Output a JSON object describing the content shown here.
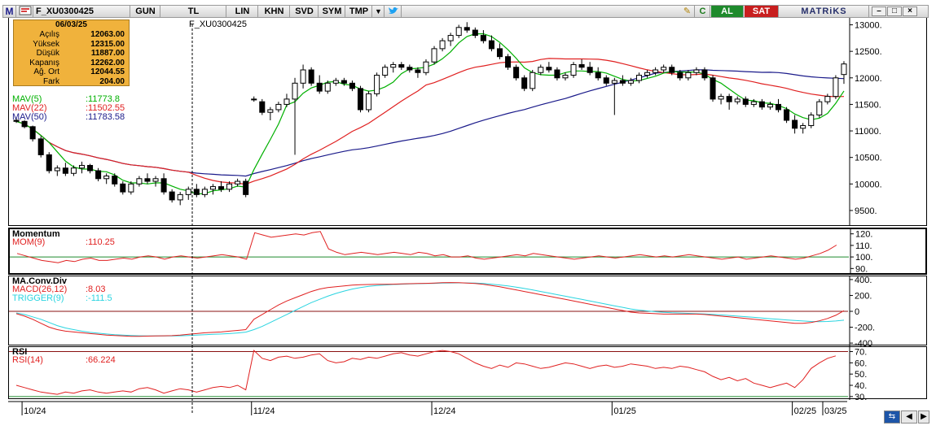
{
  "toolbar": {
    "logo": "M",
    "symbol": "F_XU0300425",
    "period": "GUN",
    "currency": "TL",
    "buttons": [
      "LIN",
      "KHN",
      "SVD",
      "SYM",
      "TMP"
    ],
    "buy_label": "AL",
    "sell_label": "SAT",
    "brand": "MATRiKS",
    "colors": {
      "buy": "#1e8a2c",
      "sell": "#c81e1e"
    }
  },
  "price_panel": {
    "ticker": "F_XU0300425",
    "info": {
      "date": "06/03/25",
      "rows": [
        {
          "label": "Açılış",
          "value": "12063.00"
        },
        {
          "label": "Yüksek",
          "value": "12315.00"
        },
        {
          "label": "Düşük",
          "value": "11887.00"
        },
        {
          "label": "Kapanış",
          "value": "12262.00"
        },
        {
          "label": "Ağ. Ort",
          "value": "12044.55"
        },
        {
          "label": "Fark",
          "value": "204.00"
        }
      ]
    },
    "legend": [
      {
        "name": "MAV(5)",
        "value": ":11773.8",
        "color": "#00b000"
      },
      {
        "name": "MAV(22)",
        "value": ":11502.55",
        "color": "#e02020"
      },
      {
        "name": "MAV(50)",
        "value": ":11783.58",
        "color": "#1a1a8a"
      }
    ],
    "y_ticks": [
      "13000.",
      "12500.",
      "12000.",
      "11500.",
      "11000.",
      "10500.",
      "10000.",
      "9500."
    ]
  },
  "momentum_panel": {
    "title": "Momentum",
    "legend": {
      "name": "MOM(9)",
      "value": ":110.25",
      "color": "#e02020"
    },
    "y_ticks": [
      "120.",
      "110.",
      "100.",
      "90."
    ]
  },
  "macd_panel": {
    "title": "MA.Conv.Div",
    "legend": [
      {
        "name": "MACD(26,12)",
        "value": ":8.03",
        "color": "#e02020"
      },
      {
        "name": "TRIGGER(9)",
        "value": ":-111.5",
        "color": "#2ad4e0"
      }
    ],
    "y_ticks": [
      "400.",
      "200.",
      "0",
      "-200.",
      "-400"
    ]
  },
  "rsi_panel": {
    "title": "RSI",
    "legend": {
      "name": "RSI(14)",
      "value": ":66.224",
      "color": "#e02020"
    },
    "y_ticks": [
      "70.",
      "60.",
      "50.",
      "40.",
      "30."
    ]
  },
  "x_axis": {
    "labels": [
      "10/24",
      "11/24",
      "12/24",
      "01/25",
      "02/25",
      "03/25"
    ]
  },
  "chart_data": {
    "type": "candlestick",
    "title": "F_XU0300425",
    "ylim": [
      9300,
      13100
    ],
    "candles": [
      [
        11200,
        11250,
        11150,
        11180
      ],
      [
        11180,
        11200,
        11050,
        11080
      ],
      [
        11080,
        11100,
        10800,
        10850
      ],
      [
        10850,
        10900,
        10500,
        10550
      ],
      [
        10550,
        10600,
        10200,
        10250
      ],
      [
        10250,
        10350,
        10150,
        10300
      ],
      [
        10300,
        10400,
        10150,
        10200
      ],
      [
        10200,
        10350,
        10150,
        10300
      ],
      [
        10300,
        10420,
        10200,
        10350
      ],
      [
        10350,
        10380,
        10200,
        10250
      ],
      [
        10250,
        10300,
        10050,
        10100
      ],
      [
        10100,
        10200,
        10000,
        10150
      ],
      [
        10150,
        10200,
        9950,
        10000
      ],
      [
        10000,
        10050,
        9800,
        9850
      ],
      [
        9850,
        10050,
        9800,
        10000
      ],
      [
        10000,
        10150,
        9950,
        10100
      ],
      [
        10100,
        10200,
        10000,
        10050
      ],
      [
        10050,
        10150,
        9950,
        10100
      ],
      [
        10100,
        10200,
        9800,
        9850
      ],
      [
        9850,
        9900,
        9650,
        9700
      ],
      [
        9700,
        9850,
        9600,
        9800
      ],
      [
        9800,
        9950,
        9700,
        9900
      ],
      [
        9900,
        10000,
        9750,
        9800
      ],
      [
        9800,
        9950,
        9750,
        9900
      ],
      [
        9900,
        10000,
        9800,
        9950
      ],
      [
        9950,
        10050,
        9850,
        9900
      ],
      [
        9900,
        10050,
        9850,
        10000
      ],
      [
        10000,
        10100,
        9950,
        10050
      ],
      [
        10050,
        10100,
        9750,
        9800
      ],
      [
        11600,
        11650,
        11550,
        11600
      ],
      [
        11550,
        11600,
        11300,
        11350
      ],
      [
        11350,
        11450,
        11200,
        11400
      ],
      [
        11400,
        11550,
        11350,
        11500
      ],
      [
        11500,
        11700,
        11450,
        11600
      ],
      [
        11600,
        12000,
        10550,
        11900
      ],
      [
        11900,
        12250,
        11800,
        12150
      ],
      [
        12150,
        12200,
        11850,
        11900
      ],
      [
        11900,
        12050,
        11700,
        11750
      ],
      [
        11750,
        11950,
        11700,
        11900
      ],
      [
        11900,
        12000,
        11850,
        11950
      ],
      [
        11950,
        12000,
        11850,
        11900
      ],
      [
        11900,
        11950,
        11750,
        11800
      ],
      [
        11800,
        11850,
        11350,
        11400
      ],
      [
        11400,
        11750,
        11350,
        11700
      ],
      [
        11700,
        12100,
        11650,
        12050
      ],
      [
        12050,
        12250,
        12000,
        12200
      ],
      [
        12200,
        12300,
        12100,
        12250
      ],
      [
        12250,
        12300,
        12150,
        12200
      ],
      [
        12200,
        12250,
        12100,
        12150
      ],
      [
        12150,
        12200,
        12000,
        12100
      ],
      [
        12100,
        12350,
        12050,
        12300
      ],
      [
        12300,
        12600,
        12250,
        12550
      ],
      [
        12550,
        12750,
        12500,
        12700
      ],
      [
        12700,
        12850,
        12600,
        12800
      ],
      [
        12800,
        13000,
        12750,
        12950
      ],
      [
        12950,
        13050,
        12850,
        12900
      ],
      [
        12900,
        12950,
        12750,
        12800
      ],
      [
        12800,
        12900,
        12650,
        12700
      ],
      [
        12700,
        12800,
        12500,
        12550
      ],
      [
        12550,
        12650,
        12350,
        12400
      ],
      [
        12400,
        12450,
        12150,
        12200
      ],
      [
        12200,
        12250,
        11950,
        12000
      ],
      [
        12000,
        12050,
        11750,
        11800
      ],
      [
        11800,
        12150,
        11750,
        12100
      ],
      [
        12100,
        12250,
        12050,
        12200
      ],
      [
        12200,
        12300,
        12100,
        12150
      ],
      [
        12150,
        12200,
        11950,
        12000
      ],
      [
        12000,
        12100,
        11950,
        12050
      ],
      [
        12050,
        12300,
        12000,
        12250
      ],
      [
        12250,
        12350,
        12150,
        12200
      ],
      [
        12200,
        12300,
        12050,
        12100
      ],
      [
        12100,
        12200,
        11950,
        12000
      ],
      [
        12000,
        12050,
        11850,
        11900
      ],
      [
        11900,
        12000,
        11300,
        11950
      ],
      [
        11950,
        12050,
        11850,
        11900
      ],
      [
        11900,
        12000,
        11850,
        11950
      ],
      [
        11950,
        12100,
        11900,
        12050
      ],
      [
        12050,
        12150,
        12000,
        12100
      ],
      [
        12100,
        12200,
        12050,
        12150
      ],
      [
        12150,
        12250,
        12100,
        12200
      ],
      [
        12200,
        12250,
        12050,
        12100
      ],
      [
        12100,
        12150,
        11950,
        12000
      ],
      [
        12000,
        12150,
        11950,
        12100
      ],
      [
        12100,
        12200,
        12050,
        12150
      ],
      [
        12150,
        12200,
        11950,
        12000
      ],
      [
        12000,
        12050,
        11550,
        11600
      ],
      [
        11600,
        11700,
        11500,
        11650
      ],
      [
        11650,
        11700,
        11400,
        11550
      ],
      [
        11550,
        11650,
        11500,
        11600
      ],
      [
        11600,
        11650,
        11450,
        11500
      ],
      [
        11500,
        11600,
        11450,
        11550
      ],
      [
        11550,
        11600,
        11400,
        11450
      ],
      [
        11450,
        11550,
        11400,
        11500
      ],
      [
        11500,
        11600,
        11350,
        11400
      ],
      [
        11400,
        11450,
        11150,
        11200
      ],
      [
        11200,
        11300,
        10950,
        11050
      ],
      [
        11050,
        11150,
        10950,
        11100
      ],
      [
        11100,
        11350,
        11050,
        11300
      ],
      [
        11300,
        11600,
        11250,
        11550
      ],
      [
        11550,
        11700,
        11500,
        11650
      ],
      [
        11650,
        12050,
        11600,
        12000
      ],
      [
        12063,
        12315,
        11887,
        12262
      ]
    ],
    "momentum": [
      103,
      101,
      99,
      97,
      96,
      95,
      97,
      96,
      98,
      99,
      97,
      97,
      98,
      99,
      98,
      100,
      101,
      100,
      98,
      100,
      101,
      100,
      99,
      100,
      101,
      102,
      101,
      100,
      98,
      121,
      119,
      117,
      118,
      119,
      120,
      119,
      121,
      122,
      107,
      104,
      102,
      103,
      104,
      103,
      102,
      103,
      104,
      103,
      102,
      104,
      103,
      101,
      102,
      100,
      100,
      101,
      99,
      98,
      99,
      100,
      101,
      102,
      101,
      103,
      102,
      101,
      100,
      99,
      98,
      99,
      100,
      101,
      100,
      99,
      100,
      101,
      102,
      101,
      100,
      101,
      100,
      101,
      102,
      101,
      100,
      99,
      98,
      99,
      100,
      98,
      99,
      100,
      101,
      100,
      99,
      98,
      99,
      101,
      103,
      106,
      110.25
    ],
    "macd": [
      -30,
      -60,
      -100,
      -150,
      -200,
      -230,
      -250,
      -260,
      -270,
      -280,
      -290,
      -300,
      -305,
      -310,
      -315,
      -315,
      -312,
      -310,
      -308,
      -306,
      -300,
      -290,
      -280,
      -270,
      -265,
      -260,
      -250,
      -240,
      -230,
      -100,
      -40,
      20,
      80,
      130,
      170,
      210,
      250,
      280,
      300,
      310,
      320,
      330,
      335,
      338,
      340,
      340,
      342,
      345,
      348,
      350,
      352,
      355,
      360,
      362,
      360,
      355,
      350,
      340,
      325,
      310,
      290,
      270,
      250,
      230,
      210,
      190,
      170,
      150,
      130,
      110,
      90,
      70,
      50,
      30,
      10,
      -10,
      -20,
      -25,
      -30,
      -35,
      -35,
      -35,
      -35,
      -35,
      -40,
      -50,
      -60,
      -70,
      -80,
      -90,
      -100,
      -110,
      -120,
      -130,
      -140,
      -150,
      -150,
      -140,
      -120,
      -90,
      -50,
      8.03
    ],
    "trigger": [
      -20,
      -40,
      -70,
      -100,
      -140,
      -180,
      -210,
      -230,
      -250,
      -265,
      -275,
      -285,
      -295,
      -300,
      -305,
      -308,
      -310,
      -310,
      -310,
      -310,
      -308,
      -305,
      -300,
      -295,
      -290,
      -285,
      -280,
      -272,
      -262,
      -230,
      -190,
      -140,
      -90,
      -40,
      10,
      60,
      110,
      150,
      190,
      225,
      255,
      280,
      300,
      315,
      325,
      332,
      338,
      342,
      345,
      348,
      350,
      352,
      355,
      357,
      358,
      357,
      355,
      350,
      342,
      332,
      320,
      305,
      288,
      270,
      250,
      230,
      210,
      190,
      170,
      150,
      130,
      110,
      90,
      70,
      50,
      30,
      15,
      5,
      -5,
      -12,
      -18,
      -22,
      -26,
      -30,
      -33,
      -38,
      -45,
      -52,
      -60,
      -68,
      -76,
      -85,
      -93,
      -100,
      -108,
      -115,
      -122,
      -128,
      -130,
      -128,
      -122,
      -111.5
    ],
    "rsi": [
      40,
      38,
      36,
      34,
      33,
      32,
      34,
      33,
      35,
      36,
      34,
      33,
      34,
      35,
      34,
      37,
      38,
      36,
      33,
      35,
      37,
      36,
      34,
      36,
      38,
      39,
      38,
      40,
      36,
      71,
      64,
      62,
      65,
      66,
      64,
      65,
      67,
      68,
      62,
      60,
      61,
      64,
      63,
      65,
      64,
      66,
      68,
      69,
      67,
      66,
      68,
      70,
      71,
      70,
      68,
      64,
      60,
      57,
      55,
      58,
      56,
      60,
      59,
      57,
      55,
      56,
      58,
      60,
      59,
      57,
      55,
      57,
      58,
      56,
      57,
      59,
      58,
      57,
      55,
      56,
      55,
      57,
      56,
      54,
      52,
      48,
      45,
      47,
      44,
      46,
      42,
      40,
      38,
      40,
      42,
      38,
      45,
      55,
      60,
      64,
      66.224
    ]
  }
}
